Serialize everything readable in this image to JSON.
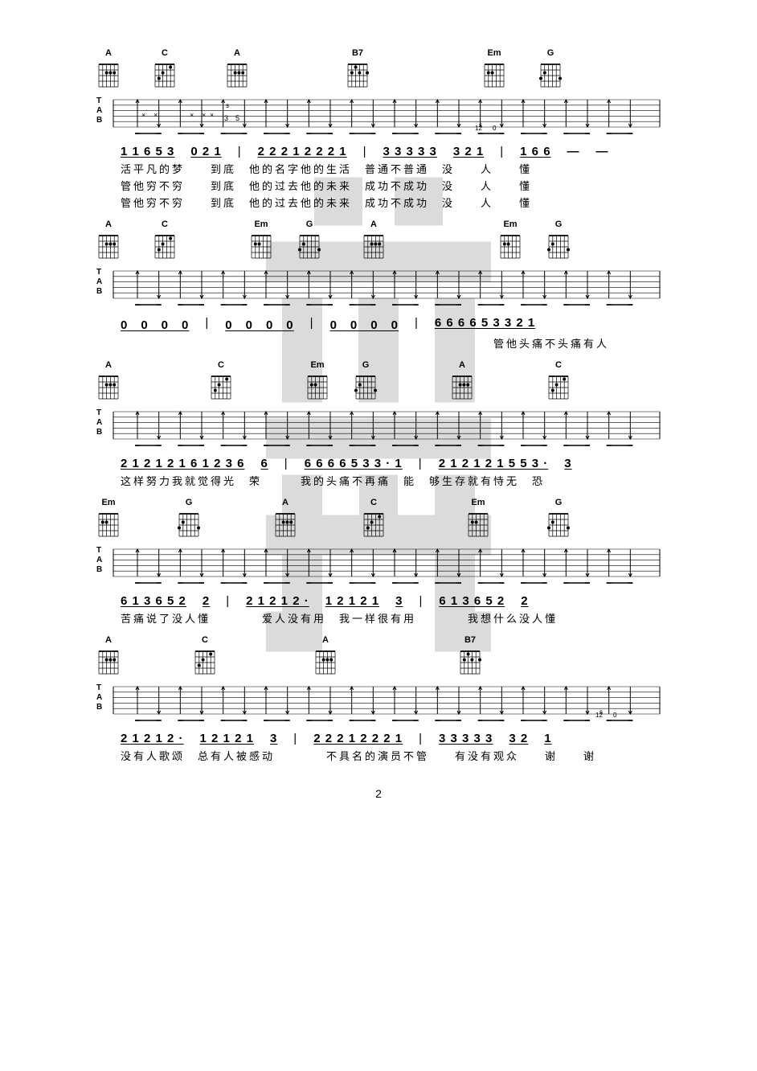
{
  "page_number": "2",
  "chords": {
    "A": {
      "name": "A",
      "frets": "x02220",
      "dots": [
        [
          2,
          2
        ],
        [
          2,
          3
        ],
        [
          2,
          4
        ]
      ]
    },
    "C": {
      "name": "C",
      "frets": "x32010",
      "dots": [
        [
          1,
          2
        ],
        [
          2,
          4
        ],
        [
          3,
          5
        ]
      ]
    },
    "B7": {
      "name": "B7",
      "frets": "x21202",
      "dots": [
        [
          1,
          4
        ],
        [
          2,
          1
        ],
        [
          2,
          3
        ],
        [
          2,
          5
        ]
      ]
    },
    "Em": {
      "name": "Em",
      "frets": "022000",
      "dots": [
        [
          2,
          4
        ],
        [
          2,
          5
        ]
      ]
    },
    "G": {
      "name": "G",
      "frets": "320003",
      "dots": [
        [
          2,
          5
        ],
        [
          3,
          1
        ],
        [
          3,
          6
        ]
      ]
    }
  },
  "systems": [
    {
      "chord_sequence": [
        "A",
        "C",
        "A",
        "",
        "B7",
        "",
        "Em",
        "G"
      ],
      "chord_positions": [
        0,
        70,
        160,
        0,
        310,
        0,
        480,
        550
      ],
      "tab_marks": "strum_with_x",
      "numbers": [
        {
          "groups": [
            "1 1 6 5 3",
            "0 2 1"
          ],
          "sep": "|",
          "groups2": [
            "2 2 2 1 2 2 2 1"
          ],
          "sep2": "|",
          "groups3": [
            "3 3 3 3 3",
            "3 2 1"
          ],
          "sep3": "|",
          "groups4": [
            "1 6 6",
            "—",
            "—"
          ]
        }
      ],
      "lyrics": [
        "活平凡的梦　　到底　他的名字他的生活　普通不普通　没　　人　　懂",
        "管他穷不穷　　到底　他的过去他的未来　成功不成功　没　　人　　懂",
        "管他穷不穷　　到底　他的过去他的未来　成功不成功　没　　人　　懂"
      ]
    },
    {
      "chord_sequence": [
        "A",
        "C",
        "",
        "Em",
        "G",
        "A",
        "",
        "",
        "Em",
        "G"
      ],
      "chord_positions": [
        0,
        70,
        0,
        190,
        250,
        330,
        0,
        0,
        500,
        560
      ],
      "tab_marks": "strum",
      "numbers": [
        {
          "groups": [
            "0　0　0　0"
          ],
          "sep": "|",
          "groups2": [
            "0　0　0　0"
          ],
          "sep2": "|",
          "groups3": [
            "0　0　0　0"
          ],
          "sep3": "|",
          "groups4": [
            "6 6 6 6 5 3 3 2 1"
          ]
        }
      ],
      "lyrics": [
        "　　　　　　　　　　　　　　　　　　　　　　　　　　　　　管他头痛不头痛有人"
      ]
    },
    {
      "chord_sequence": [
        "A",
        "",
        "C",
        "",
        "Em",
        "G",
        "",
        "A",
        "",
        "C"
      ],
      "chord_positions": [
        0,
        0,
        140,
        0,
        260,
        320,
        0,
        440,
        0,
        560
      ],
      "tab_marks": "strum",
      "numbers": [
        {
          "groups": [
            "2 1 2 1 2 1 6 1 2 3 6",
            "6"
          ],
          "sep": "|",
          "groups2": [
            "6 6 6 6 5 3 3 · 1"
          ],
          "sep2": "|",
          "groups3": [
            "2 1 2 1 2 1 5 5 3 ·",
            "3"
          ]
        }
      ],
      "lyrics": [
        "这样努力我就觉得光　荣　　　我的头痛不再痛　能　够生存就有恃无　恐"
      ]
    },
    {
      "chord_sequence": [
        "Em",
        "",
        "G",
        "",
        "A",
        "",
        "C",
        "",
        "Em",
        "",
        "G"
      ],
      "chord_positions": [
        0,
        0,
        100,
        0,
        220,
        0,
        330,
        0,
        460,
        0,
        560
      ],
      "tab_marks": "strum",
      "numbers": [
        {
          "groups": [
            "6 1 3 6 5 2",
            "2"
          ],
          "sep": "|",
          "groups2": [
            "2 1 2 1 2 ·",
            "1 2 1 2 1",
            "3"
          ],
          "sep2": "|",
          "groups3": [
            "6 1 3 6 5 2",
            "2"
          ]
        }
      ],
      "lyrics": [
        "苦痛说了没人懂　　　　爱人没有用　我一样很有用　　　　我想什么没人懂"
      ]
    },
    {
      "chord_sequence": [
        "A",
        "",
        "C",
        "",
        "A",
        "",
        "",
        "B7"
      ],
      "chord_positions": [
        0,
        0,
        120,
        0,
        270,
        0,
        0,
        450
      ],
      "tab_marks": "strum_end_slide",
      "numbers": [
        {
          "groups": [
            "2 1 2 1 2 ·",
            "1 2 1 2 1",
            "3"
          ],
          "sep": "|",
          "groups2": [
            "2 2 2 1 2 2 2 1"
          ],
          "sep2": "|",
          "groups3": [
            "3 3 3 3 3"
          ],
          "sep3": "",
          "groups4": [
            "3 2",
            "1"
          ]
        }
      ],
      "lyrics": [
        "没有人歌颂　总有人被感动　　　　不具名的演员不管　　有没有观众　　谢　　谢"
      ]
    }
  ],
  "colors": {
    "line": "#000000",
    "watermark": "#b8b8b8",
    "bg": "#ffffff"
  }
}
